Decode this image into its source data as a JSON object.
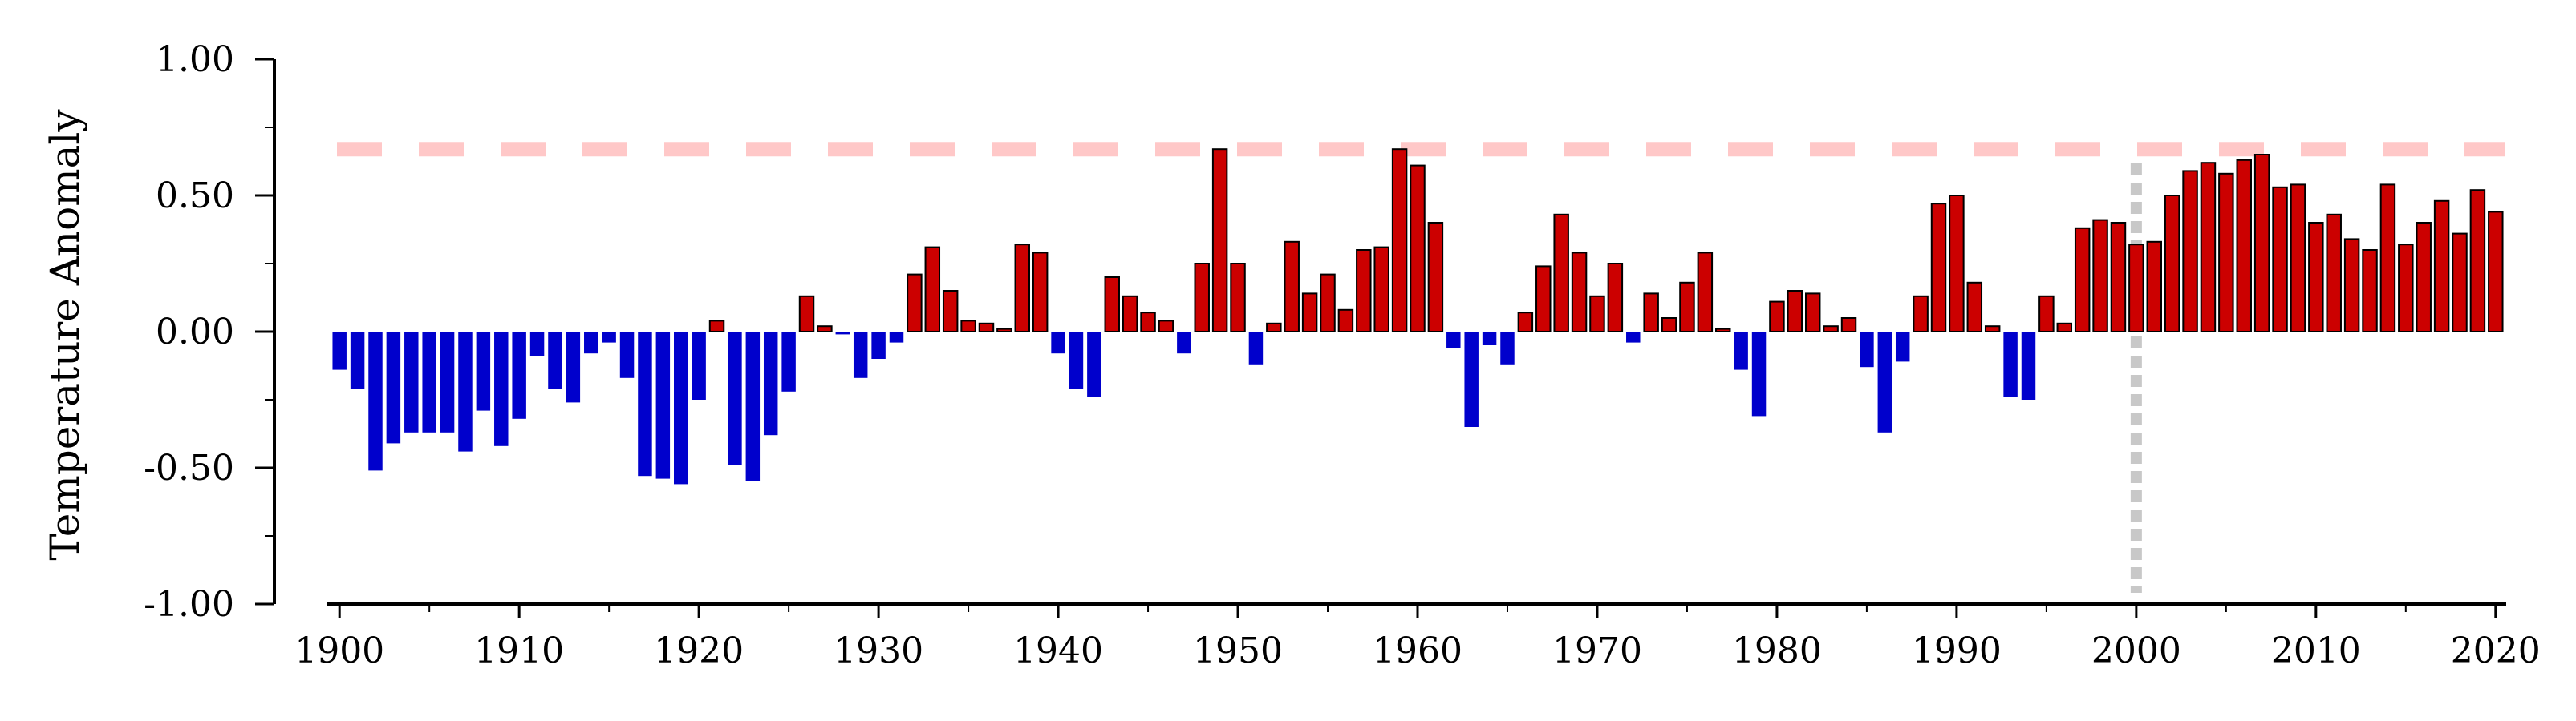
{
  "chart_data": {
    "type": "bar",
    "ylabel": "Temperature Anomaly",
    "xlabel": "",
    "title": "",
    "ylim": [
      -1.0,
      1.0
    ],
    "xlim": [
      1899.5,
      2020.5
    ],
    "y_ticks": [
      "1.00",
      "0.50",
      "0.00",
      "-0.50",
      "-1.00"
    ],
    "y_tick_values": [
      1.0,
      0.5,
      0.0,
      -0.5,
      -1.0
    ],
    "x_ticks": [
      "1900",
      "1910",
      "1920",
      "1930",
      "1940",
      "1950",
      "1960",
      "1970",
      "1980",
      "1990",
      "2000",
      "2010",
      "2020"
    ],
    "x_tick_values": [
      1900,
      1910,
      1920,
      1930,
      1940,
      1950,
      1960,
      1970,
      1980,
      1990,
      2000,
      2010,
      2020
    ],
    "grid": false,
    "colors": {
      "positive": "#cc0000",
      "negative": "#0000cc",
      "bar_edge": "#000000",
      "reference_line": "#ffc8c8",
      "marker_line": "#c8c8c8"
    },
    "reference_line": {
      "y": 0.67,
      "style": "dashed"
    },
    "vertical_marker": {
      "x": 2000,
      "style": "dotted"
    },
    "x": [
      1900,
      1901,
      1902,
      1903,
      1904,
      1905,
      1906,
      1907,
      1908,
      1909,
      1910,
      1911,
      1912,
      1913,
      1914,
      1915,
      1916,
      1917,
      1918,
      1919,
      1920,
      1921,
      1922,
      1923,
      1924,
      1925,
      1926,
      1927,
      1928,
      1929,
      1930,
      1931,
      1932,
      1933,
      1934,
      1935,
      1936,
      1937,
      1938,
      1939,
      1940,
      1941,
      1942,
      1943,
      1944,
      1945,
      1946,
      1947,
      1948,
      1949,
      1950,
      1951,
      1952,
      1953,
      1954,
      1955,
      1956,
      1957,
      1958,
      1959,
      1960,
      1961,
      1962,
      1963,
      1964,
      1965,
      1966,
      1967,
      1968,
      1969,
      1970,
      1971,
      1972,
      1973,
      1974,
      1975,
      1976,
      1977,
      1978,
      1979,
      1980,
      1981,
      1982,
      1983,
      1984,
      1985,
      1986,
      1987,
      1988,
      1989,
      1990,
      1991,
      1992,
      1993,
      1994,
      1995,
      1996,
      1997,
      1998,
      1999,
      2000,
      2001,
      2002,
      2003,
      2004,
      2005,
      2006,
      2007,
      2008,
      2009,
      2010,
      2011,
      2012,
      2013,
      2014,
      2015,
      2016,
      2017,
      2018,
      2019,
      2020
    ],
    "values": [
      -0.14,
      -0.21,
      -0.51,
      -0.41,
      -0.37,
      -0.37,
      -0.37,
      -0.44,
      -0.29,
      -0.42,
      -0.32,
      -0.09,
      -0.21,
      -0.26,
      -0.08,
      -0.04,
      -0.17,
      -0.53,
      -0.54,
      -0.56,
      -0.25,
      0.04,
      -0.49,
      -0.55,
      -0.38,
      -0.22,
      0.13,
      0.02,
      -0.01,
      -0.17,
      -0.1,
      -0.04,
      0.21,
      0.31,
      0.15,
      0.04,
      0.03,
      0.01,
      0.32,
      0.29,
      -0.08,
      -0.21,
      -0.24,
      0.2,
      0.13,
      0.07,
      0.04,
      -0.08,
      0.25,
      0.67,
      0.25,
      -0.12,
      0.03,
      0.33,
      0.14,
      0.21,
      0.08,
      0.3,
      0.31,
      0.67,
      0.61,
      0.4,
      -0.06,
      -0.35,
      -0.05,
      -0.12,
      0.07,
      0.24,
      0.43,
      0.29,
      0.13,
      0.25,
      -0.04,
      0.14,
      0.05,
      0.18,
      0.29,
      0.01,
      -0.14,
      -0.31,
      0.11,
      0.15,
      0.14,
      0.02,
      0.05,
      -0.13,
      -0.37,
      -0.11,
      0.13,
      0.47,
      0.5,
      0.18,
      0.02,
      -0.24,
      -0.25,
      0.13,
      0.03,
      0.38,
      0.41,
      0.4,
      0.32,
      0.33,
      0.5,
      0.59,
      0.62,
      0.58,
      0.63,
      0.65,
      0.53,
      0.54,
      0.4,
      0.43,
      0.34,
      0.3,
      0.54,
      0.32,
      0.4,
      0.48,
      0.36,
      0.52,
      0.44
    ]
  }
}
